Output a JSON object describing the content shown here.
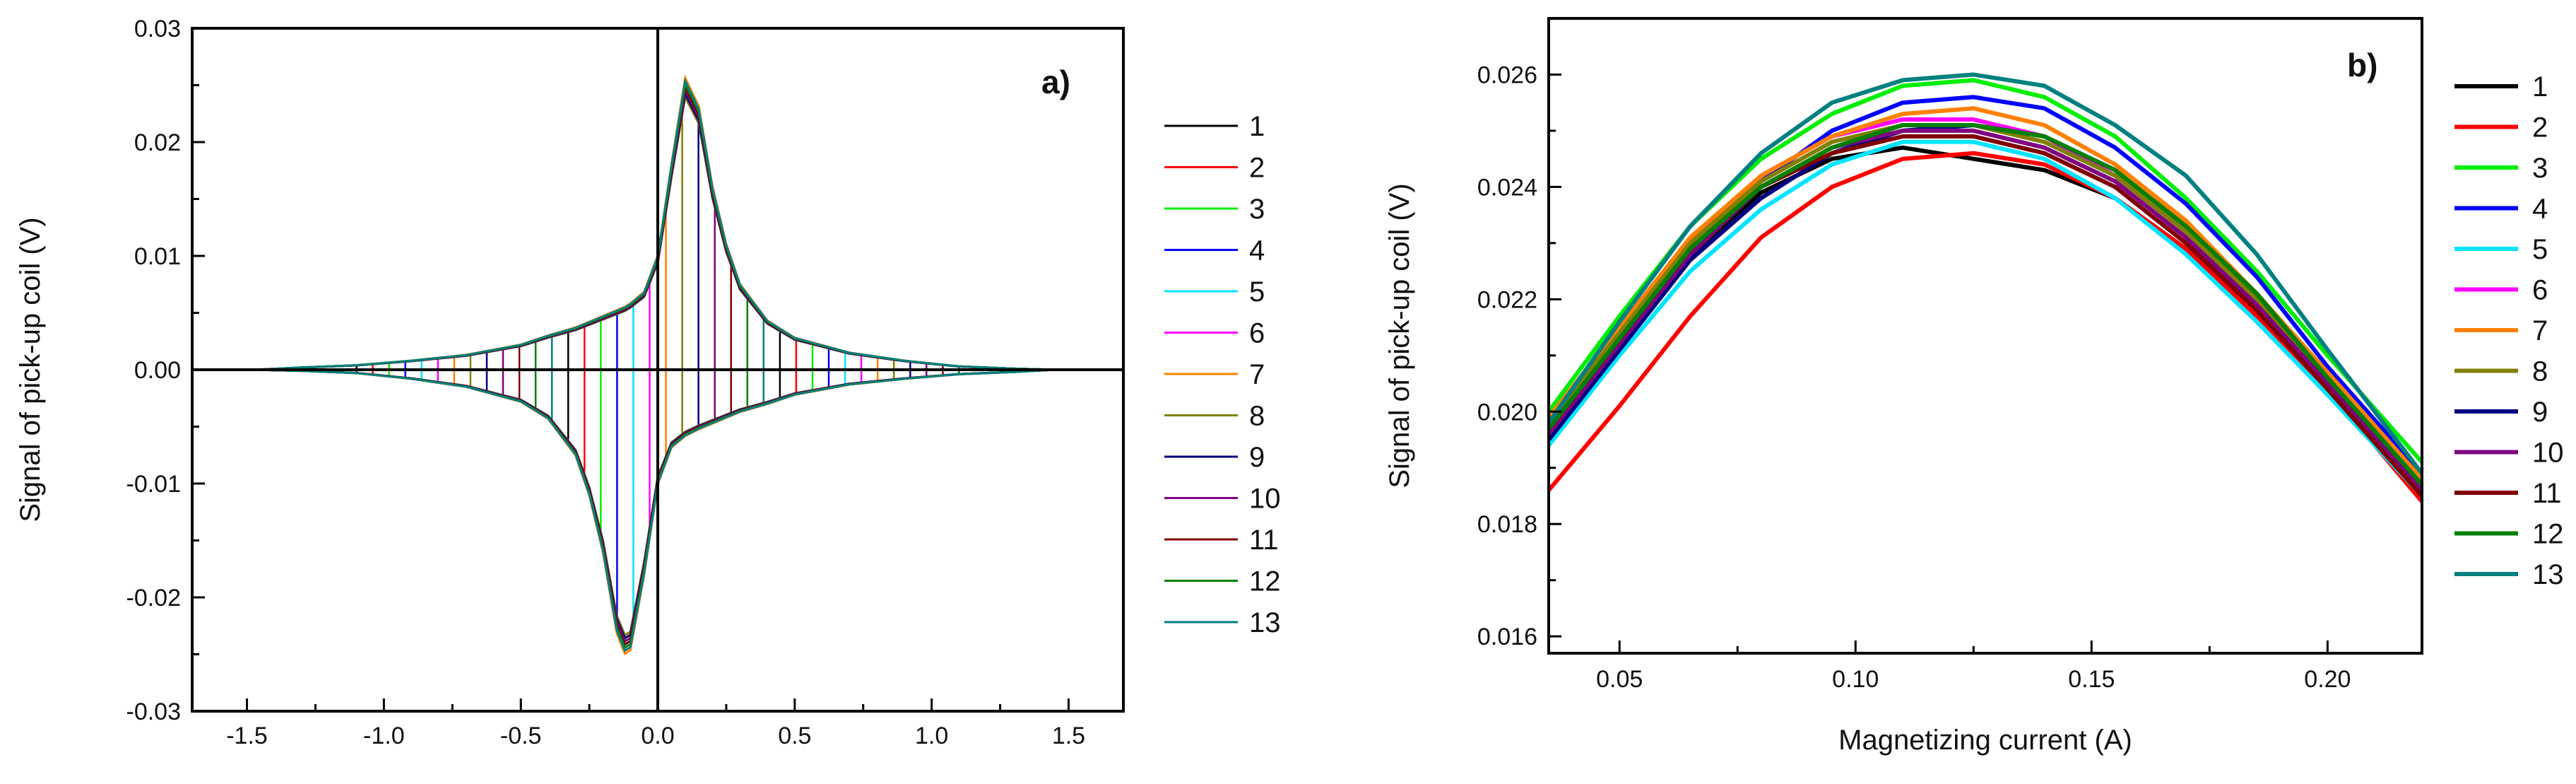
{
  "series_colors": {
    "1": "#000000",
    "2": "#ff0000",
    "3": "#00ee00",
    "4": "#0000ff",
    "5": "#00e5ff",
    "6": "#ff00ff",
    "7": "#ff8000",
    "8": "#808000",
    "9": "#000080",
    "10": "#800080",
    "11": "#800000",
    "12": "#008000",
    "13": "#008080"
  },
  "chart_data": [
    {
      "type": "line",
      "panel_label": "a)",
      "title": "",
      "xlabel": "",
      "ylabel": "Signal of pick-up coil (V)",
      "xlim": [
        -1.7,
        1.7
      ],
      "ylim": [
        -0.03,
        0.03
      ],
      "xticks": [
        -1.5,
        -1.0,
        -0.5,
        0.0,
        0.5,
        1.0,
        1.5
      ],
      "xtick_labels": [
        "-1.5",
        "-1.0",
        "-0.5",
        "0.0",
        "0.5",
        "1.0",
        "1.5"
      ],
      "yticks": [
        -0.03,
        -0.02,
        -0.01,
        0.0,
        0.01,
        0.02,
        0.03
      ],
      "ytick_labels": [
        "-0.03",
        "-0.02",
        "-0.01",
        "0.00",
        "0.01",
        "0.02",
        "0.03"
      ],
      "legend_position": "right outside",
      "grid": false,
      "zero_lines": true,
      "envelope_x": [
        -1.47,
        -1.3,
        -1.1,
        -0.9,
        -0.7,
        -0.5,
        -0.4,
        -0.3,
        -0.25,
        -0.2,
        -0.15,
        -0.12,
        -0.1,
        -0.05,
        0.0,
        0.05,
        0.1,
        0.15,
        0.2,
        0.25,
        0.3,
        0.4,
        0.5,
        0.7,
        0.9,
        1.1,
        1.3,
        1.45
      ],
      "envelope_upper": [
        0.0,
        0.0002,
        0.0004,
        0.0008,
        0.0013,
        0.0022,
        0.003,
        0.0037,
        0.0042,
        0.0047,
        0.0052,
        0.0055,
        0.0058,
        0.0068,
        0.01,
        0.018,
        0.0255,
        0.023,
        0.016,
        0.011,
        0.0075,
        0.0043,
        0.0028,
        0.0015,
        0.0008,
        0.0003,
        0.0001,
        0.0
      ],
      "envelope_lower": [
        0.0,
        -0.0001,
        -0.0003,
        -0.0008,
        -0.0015,
        -0.0028,
        -0.0043,
        -0.0075,
        -0.011,
        -0.016,
        -0.023,
        -0.0248,
        -0.0245,
        -0.018,
        -0.01,
        -0.0068,
        -0.0058,
        -0.0052,
        -0.0047,
        -0.0042,
        -0.0037,
        -0.003,
        -0.0022,
        -0.0013,
        -0.0008,
        -0.0004,
        -0.0002,
        0.0
      ],
      "series": [
        {
          "name": "1",
          "color_key": "1"
        },
        {
          "name": "2",
          "color_key": "2"
        },
        {
          "name": "3",
          "color_key": "3"
        },
        {
          "name": "4",
          "color_key": "4"
        },
        {
          "name": "5",
          "color_key": "5"
        },
        {
          "name": "6",
          "color_key": "6"
        },
        {
          "name": "7",
          "color_key": "7"
        },
        {
          "name": "8",
          "color_key": "8"
        },
        {
          "name": "9",
          "color_key": "9"
        },
        {
          "name": "10",
          "color_key": "10"
        },
        {
          "name": "11",
          "color_key": "11"
        },
        {
          "name": "12",
          "color_key": "12"
        },
        {
          "name": "13",
          "color_key": "13"
        }
      ]
    },
    {
      "type": "line",
      "panel_label": "b)",
      "title": "",
      "xlabel": "Magnetizing current  (A)",
      "ylabel": "Signal of pick-up coil (V)",
      "xlim": [
        0.035,
        0.22
      ],
      "ylim": [
        0.0157,
        0.027
      ],
      "xticks": [
        0.05,
        0.1,
        0.15,
        0.2
      ],
      "xtick_labels": [
        "0.05",
        "0.10",
        "0.15",
        "0.20"
      ],
      "yticks": [
        0.016,
        0.018,
        0.02,
        0.022,
        0.024,
        0.026
      ],
      "ytick_labels": [
        "0.016",
        "0.018",
        "0.020",
        "0.022",
        "0.024",
        "0.026"
      ],
      "legend_position": "right outside",
      "grid": false,
      "x": [
        0.035,
        0.05,
        0.065,
        0.08,
        0.095,
        0.11,
        0.125,
        0.14,
        0.155,
        0.17,
        0.185,
        0.2,
        0.22
      ],
      "series": [
        {
          "name": "1",
          "color_key": "1",
          "values": [
            0.0197,
            0.0212,
            0.0228,
            0.0239,
            0.0245,
            0.0247,
            0.0245,
            0.0243,
            0.0238,
            0.0229,
            0.0218,
            0.0205,
            0.0186
          ]
        },
        {
          "name": "2",
          "color_key": "2",
          "values": [
            0.0186,
            0.0201,
            0.0217,
            0.0231,
            0.024,
            0.0245,
            0.0246,
            0.0244,
            0.0238,
            0.0229,
            0.0217,
            0.0204,
            0.0184
          ]
        },
        {
          "name": "3",
          "color_key": "3",
          "values": [
            0.02,
            0.0217,
            0.0233,
            0.0245,
            0.0253,
            0.0258,
            0.0259,
            0.0256,
            0.0249,
            0.0238,
            0.0225,
            0.021,
            0.0191
          ]
        },
        {
          "name": "4",
          "color_key": "4",
          "values": [
            0.0196,
            0.0213,
            0.0229,
            0.0241,
            0.025,
            0.0255,
            0.0256,
            0.0254,
            0.0247,
            0.0237,
            0.0224,
            0.0208,
            0.0189
          ]
        },
        {
          "name": "5",
          "color_key": "5",
          "values": [
            0.0194,
            0.021,
            0.0225,
            0.0236,
            0.0244,
            0.0248,
            0.0248,
            0.0245,
            0.0238,
            0.0228,
            0.0216,
            0.0203,
            0.0185
          ]
        },
        {
          "name": "6",
          "color_key": "6",
          "values": [
            0.0198,
            0.0214,
            0.023,
            0.0242,
            0.0249,
            0.0252,
            0.0252,
            0.0249,
            0.0242,
            0.0232,
            0.022,
            0.0206,
            0.0187
          ]
        },
        {
          "name": "7",
          "color_key": "7",
          "values": [
            0.0199,
            0.0215,
            0.0231,
            0.0242,
            0.0249,
            0.0253,
            0.0254,
            0.0251,
            0.0244,
            0.0234,
            0.0221,
            0.0207,
            0.0188
          ]
        },
        {
          "name": "8",
          "color_key": "8",
          "values": [
            0.0198,
            0.0214,
            0.023,
            0.0241,
            0.0248,
            0.0251,
            0.0251,
            0.0248,
            0.0242,
            0.0232,
            0.022,
            0.0206,
            0.0187
          ]
        },
        {
          "name": "9",
          "color_key": "9",
          "values": [
            0.0195,
            0.0211,
            0.0227,
            0.0238,
            0.0246,
            0.025,
            0.0251,
            0.0249,
            0.0243,
            0.0233,
            0.0221,
            0.0206,
            0.0187
          ]
        },
        {
          "name": "10",
          "color_key": "10",
          "values": [
            0.0196,
            0.0212,
            0.0228,
            0.024,
            0.0247,
            0.025,
            0.025,
            0.0247,
            0.0241,
            0.0231,
            0.0219,
            0.0205,
            0.0186
          ]
        },
        {
          "name": "11",
          "color_key": "11",
          "values": [
            0.0197,
            0.0213,
            0.0229,
            0.024,
            0.0246,
            0.0249,
            0.0249,
            0.0246,
            0.024,
            0.023,
            0.0218,
            0.0204,
            0.0185
          ]
        },
        {
          "name": "12",
          "color_key": "12",
          "values": [
            0.0197,
            0.0213,
            0.0229,
            0.024,
            0.0247,
            0.0251,
            0.0251,
            0.0249,
            0.0243,
            0.0233,
            0.0221,
            0.0206,
            0.0187
          ]
        },
        {
          "name": "13",
          "color_key": "13",
          "values": [
            0.0198,
            0.0216,
            0.0233,
            0.0246,
            0.0255,
            0.0259,
            0.026,
            0.0258,
            0.0251,
            0.0242,
            0.0228,
            0.0211,
            0.0189
          ]
        }
      ]
    }
  ]
}
